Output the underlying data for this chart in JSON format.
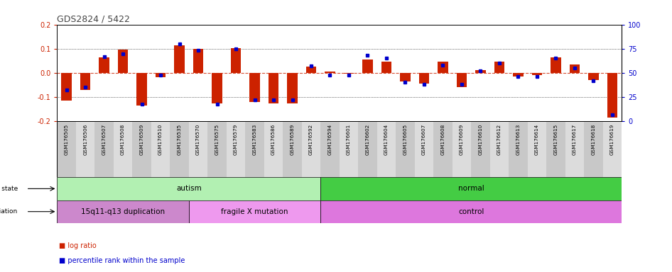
{
  "title": "GDS2824 / 5422",
  "samples": [
    "GSM176505",
    "GSM176506",
    "GSM176507",
    "GSM176508",
    "GSM176509",
    "GSM176510",
    "GSM176535",
    "GSM176570",
    "GSM176575",
    "GSM176579",
    "GSM176583",
    "GSM176586",
    "GSM176589",
    "GSM176592",
    "GSM176594",
    "GSM176601",
    "GSM176602",
    "GSM176604",
    "GSM176605",
    "GSM176607",
    "GSM176608",
    "GSM176609",
    "GSM176610",
    "GSM176612",
    "GSM176613",
    "GSM176614",
    "GSM176615",
    "GSM176617",
    "GSM176618",
    "GSM176619"
  ],
  "log_ratio": [
    -0.115,
    -0.072,
    0.065,
    0.095,
    -0.135,
    -0.018,
    0.115,
    0.098,
    -0.125,
    0.102,
    -0.12,
    -0.125,
    -0.125,
    0.025,
    0.004,
    -0.004,
    0.055,
    0.045,
    -0.035,
    -0.045,
    0.045,
    -0.06,
    0.01,
    0.045,
    -0.015,
    -0.01,
    0.065,
    0.035,
    -0.03,
    -0.185
  ],
  "percentile": [
    32,
    35,
    67,
    70,
    18,
    48,
    80,
    73,
    18,
    75,
    22,
    22,
    22,
    57,
    48,
    48,
    68,
    65,
    40,
    38,
    58,
    38,
    52,
    60,
    46,
    46,
    65,
    55,
    42,
    7
  ],
  "disease_state_groups": [
    {
      "label": "autism",
      "start": 0,
      "end": 14,
      "color": "#b2f0b2"
    },
    {
      "label": "normal",
      "start": 14,
      "end": 30,
      "color": "#44cc44"
    }
  ],
  "genotype_groups": [
    {
      "label": "15q11-q13 duplication",
      "start": 0,
      "end": 7,
      "color": "#cc88cc"
    },
    {
      "label": "fragile X mutation",
      "start": 7,
      "end": 14,
      "color": "#ee99ee"
    },
    {
      "label": "control",
      "start": 14,
      "end": 30,
      "color": "#dd77dd"
    }
  ],
  "ylim": [
    -0.2,
    0.2
  ],
  "yticks_left": [
    -0.2,
    -0.1,
    0.0,
    0.1,
    0.2
  ],
  "yticks_right": [
    0,
    25,
    50,
    75,
    100
  ],
  "bar_color": "#cc2200",
  "dot_color": "#0000cc",
  "background_color": "#ffffff",
  "title_color": "#444444",
  "left_axis_color": "#cc2200",
  "right_axis_color": "#0000cc",
  "xtick_bg_odd": "#c8c8c8",
  "xtick_bg_even": "#dcdcdc",
  "legend_bar_label": "log ratio",
  "legend_dot_label": "percentile rank within the sample"
}
